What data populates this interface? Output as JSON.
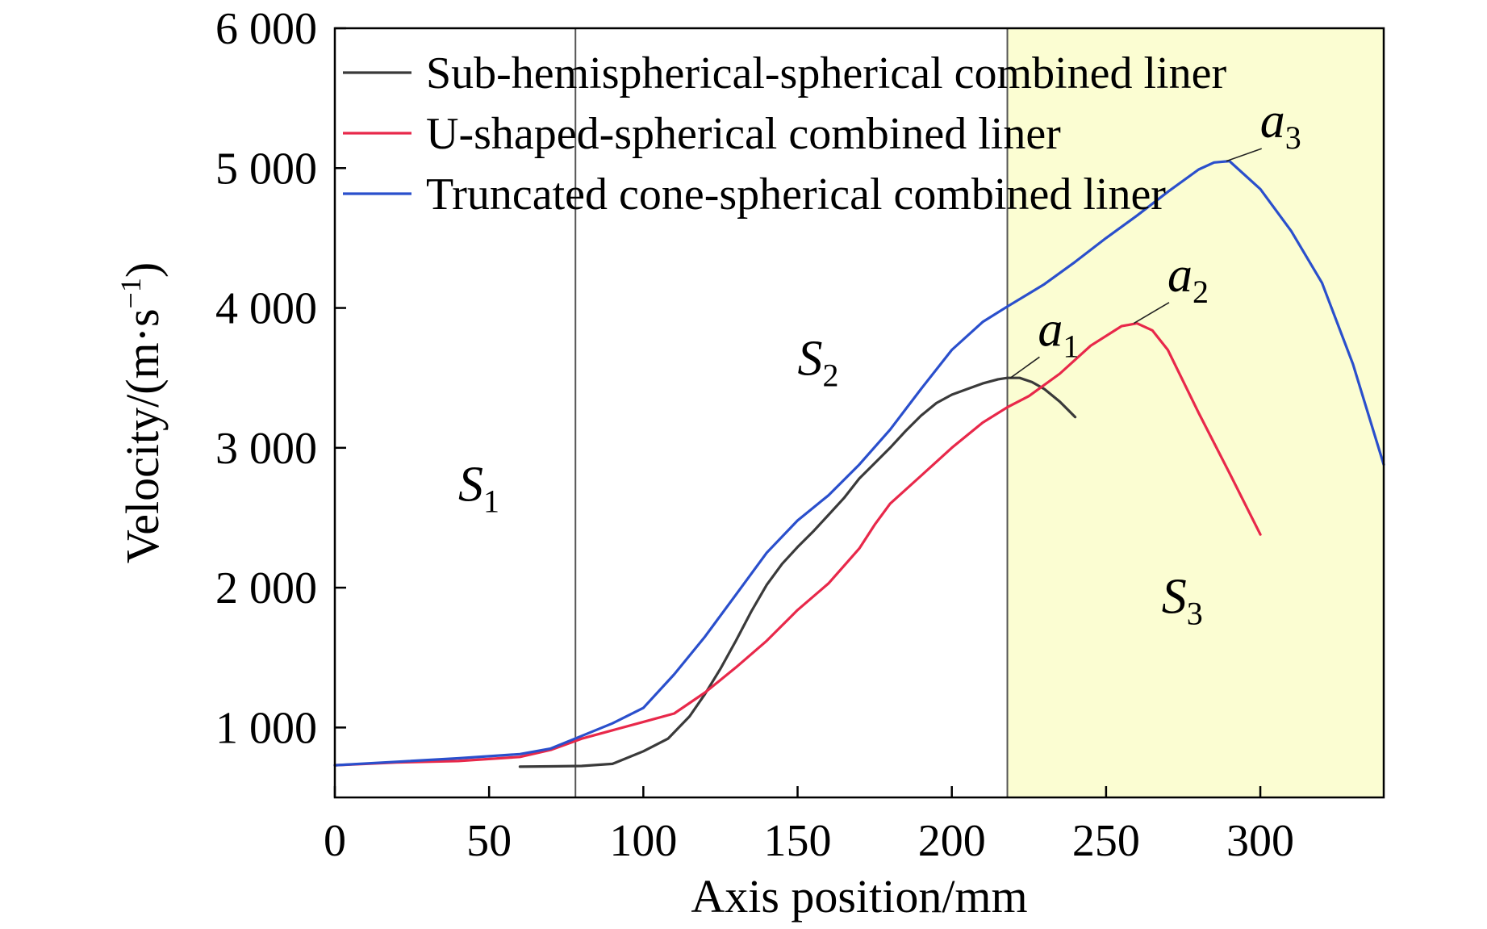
{
  "chart_data": {
    "type": "line",
    "xlabel": "Axis position/mm",
    "ylabel": "Velocity/(m·s",
    "ylabel_sup": "−1",
    "ylabel_close": ")",
    "xlim": [
      0,
      340
    ],
    "ylim": [
      500,
      6000
    ],
    "xticks": [
      0,
      50,
      100,
      150,
      200,
      250,
      300
    ],
    "xtick_labels": [
      "0",
      "50",
      "100",
      "150",
      "200",
      "250",
      "300"
    ],
    "yticks": [
      1000,
      2000,
      3000,
      4000,
      5000,
      6000
    ],
    "ytick_labels": [
      "1 000",
      "2 000",
      "3 000",
      "4 000",
      "5 000",
      "6 000"
    ],
    "grid": false,
    "legend_position": "top-left",
    "region_dividers": [
      78,
      218
    ],
    "shaded_region": {
      "from": 218,
      "to": 340,
      "color": "#fbfdd2"
    },
    "regions": [
      {
        "letter": "S",
        "sub": "1",
        "x": 40,
        "y": 2620
      },
      {
        "letter": "S",
        "sub": "2",
        "x": 150,
        "y": 3520
      },
      {
        "letter": "S",
        "sub": "3",
        "x": 268,
        "y": 1820
      }
    ],
    "series": [
      {
        "name": "Sub-hemispherical-spherical combined liner",
        "color": "#3a3a3a",
        "x": [
          60,
          70,
          80,
          90,
          100,
          108,
          115,
          120,
          125,
          130,
          135,
          140,
          145,
          150,
          155,
          160,
          165,
          170,
          175,
          180,
          185,
          190,
          195,
          200,
          205,
          210,
          215,
          218,
          222,
          226,
          230,
          235,
          240
        ],
        "y": [
          720,
          722,
          725,
          740,
          830,
          920,
          1080,
          1240,
          1420,
          1620,
          1830,
          2020,
          2170,
          2290,
          2400,
          2520,
          2640,
          2780,
          2890,
          3000,
          3120,
          3230,
          3320,
          3380,
          3420,
          3460,
          3490,
          3500,
          3500,
          3470,
          3420,
          3330,
          3220
        ]
      },
      {
        "name": "U-shaped-spherical combined liner",
        "color": "#e8284a",
        "x": [
          0,
          20,
          40,
          60,
          70,
          80,
          90,
          100,
          110,
          120,
          130,
          140,
          150,
          160,
          170,
          175,
          180,
          190,
          200,
          210,
          218,
          225,
          235,
          245,
          255,
          260,
          265,
          270,
          280,
          290,
          300
        ],
        "y": [
          730,
          750,
          760,
          790,
          840,
          920,
          980,
          1040,
          1100,
          1250,
          1430,
          1620,
          1840,
          2030,
          2280,
          2450,
          2600,
          2800,
          3000,
          3180,
          3290,
          3370,
          3530,
          3730,
          3870,
          3890,
          3840,
          3700,
          3250,
          2820,
          2380
        ]
      },
      {
        "name": "Truncated cone-spherical combined liner",
        "color": "#2a4fcc",
        "x": [
          0,
          20,
          40,
          60,
          70,
          80,
          90,
          100,
          110,
          120,
          130,
          140,
          150,
          160,
          170,
          180,
          190,
          200,
          210,
          218,
          230,
          240,
          250,
          260,
          270,
          280,
          285,
          290,
          300,
          310,
          320,
          330,
          340
        ],
        "y": [
          730,
          755,
          780,
          810,
          850,
          940,
          1030,
          1140,
          1380,
          1650,
          1950,
          2250,
          2480,
          2660,
          2880,
          3130,
          3420,
          3700,
          3900,
          4010,
          4170,
          4330,
          4500,
          4660,
          4830,
          4990,
          5040,
          5050,
          4850,
          4550,
          4180,
          3600,
          2880
        ]
      }
    ],
    "annotations": [
      {
        "letter": "a",
        "sub": "1",
        "point": [
          219,
          3500
        ],
        "text_at": [
          230,
          3730
        ]
      },
      {
        "letter": "a",
        "sub": "2",
        "point": [
          259,
          3890
        ],
        "text_at": [
          272,
          4120
        ]
      },
      {
        "letter": "a",
        "sub": "3",
        "point": [
          289,
          5050
        ],
        "text_at": [
          302,
          5220
        ]
      }
    ]
  }
}
